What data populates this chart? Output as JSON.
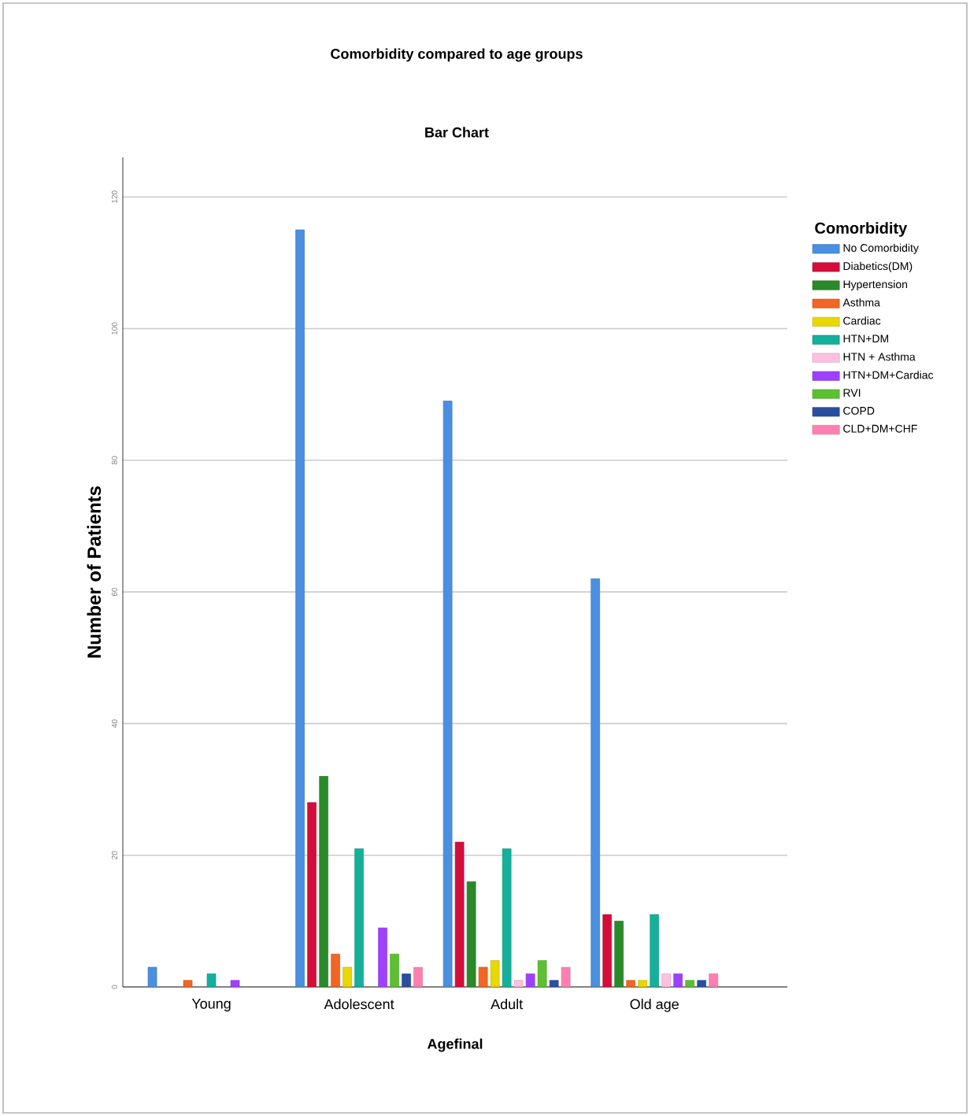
{
  "chart_data": {
    "type": "bar",
    "title": "Comorbidity compared to age groups",
    "subtitle": "Bar Chart",
    "xlabel": "Agefinal",
    "ylabel": "Number of Patients",
    "legend_title": "Comorbidity",
    "categories": [
      "Young",
      "Adolescent",
      "Adult",
      "Old age"
    ],
    "series": [
      {
        "name": "No Comorbidity",
        "color": "#4a8fe0",
        "values": [
          3,
          115,
          89,
          62
        ]
      },
      {
        "name": "Diabetics(DM)",
        "color": "#d40d3a",
        "values": [
          null,
          28,
          22,
          11
        ]
      },
      {
        "name": "Hypertension",
        "color": "#2a8a2a",
        "values": [
          null,
          32,
          16,
          10
        ]
      },
      {
        "name": "Asthma",
        "color": "#f26522",
        "values": [
          1,
          5,
          3,
          1
        ]
      },
      {
        "name": "Cardiac",
        "color": "#e8d800",
        "values": [
          null,
          3,
          4,
          1
        ]
      },
      {
        "name": "HTN+DM",
        "color": "#14b09a",
        "values": [
          2,
          21,
          21,
          11
        ]
      },
      {
        "name": "HTN + Asthma",
        "color": "#ffc0e0",
        "values": [
          null,
          null,
          1,
          2
        ]
      },
      {
        "name": "HTN+DM+Cardiac",
        "color": "#a040ff",
        "values": [
          1,
          9,
          2,
          2
        ]
      },
      {
        "name": "RVI",
        "color": "#5cc030",
        "values": [
          null,
          5,
          4,
          1
        ]
      },
      {
        "name": "COPD",
        "color": "#2a4fa0",
        "values": [
          null,
          2,
          1,
          1
        ]
      },
      {
        "name": "CLD+DM+CHF",
        "color": "#ff80b0",
        "values": [
          null,
          3,
          3,
          2
        ]
      }
    ],
    "ylim": [
      0,
      126
    ],
    "yticks": [
      0,
      20,
      40,
      60,
      80,
      100,
      120
    ],
    "grid": "y",
    "legend": "top right"
  }
}
